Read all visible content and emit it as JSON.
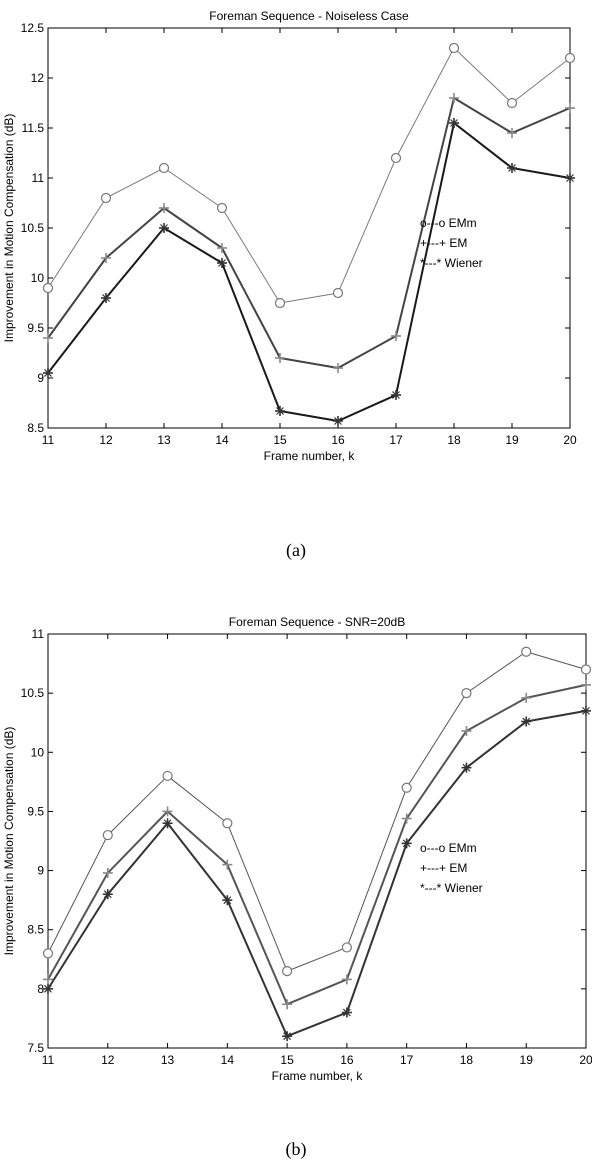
{
  "chart_data": [
    {
      "type": "line",
      "title": "Foreman Sequence - Noiseless Case",
      "xlabel": "Frame number, k",
      "ylabel": "Improvement in Motion Compensation (dB)",
      "x": [
        11,
        12,
        13,
        14,
        15,
        16,
        17,
        18,
        19,
        20
      ],
      "xlim": [
        11,
        20
      ],
      "ylim": [
        8.5,
        12.5
      ],
      "yticks": [
        8.5,
        9,
        9.5,
        10,
        10.5,
        11,
        11.5,
        12,
        12.5
      ],
      "xticks": [
        11,
        12,
        13,
        14,
        15,
        16,
        17,
        18,
        19,
        20
      ],
      "legend_position": "right",
      "legend": [
        "o---o EMm",
        "+---+ EM",
        "*---* Wiener"
      ],
      "series": [
        {
          "name": "EMm",
          "marker": "o",
          "color": "#7a7a7a",
          "values": [
            9.9,
            10.8,
            11.1,
            10.7,
            9.75,
            9.85,
            11.2,
            12.3,
            11.75,
            12.2
          ]
        },
        {
          "name": "EM",
          "marker": "+",
          "color": "#444444",
          "values": [
            9.4,
            10.2,
            10.7,
            10.3,
            9.2,
            9.1,
            9.42,
            11.8,
            11.45,
            11.7
          ]
        },
        {
          "name": "Wiener",
          "marker": "*",
          "color": "#1a1a1a",
          "values": [
            9.05,
            9.8,
            10.5,
            10.15,
            8.67,
            8.57,
            8.83,
            11.55,
            11.1,
            11.0
          ]
        }
      ]
    },
    {
      "type": "line",
      "title": "Foreman Sequence -  SNR=20dB",
      "xlabel": "Frame number, k",
      "ylabel": "Improvement in Motion Compensation (dB)",
      "x": [
        11,
        12,
        13,
        14,
        15,
        16,
        17,
        18,
        19,
        20
      ],
      "xlim": [
        11,
        20
      ],
      "ylim": [
        7.5,
        11
      ],
      "yticks": [
        7.5,
        8,
        8.5,
        9,
        9.5,
        10,
        10.5,
        11
      ],
      "xticks": [
        11,
        12,
        13,
        14,
        15,
        16,
        17,
        18,
        19,
        20
      ],
      "legend_position": "right",
      "legend": [
        "o---o EMm",
        "+---+ EM",
        "*---* Wiener"
      ],
      "series": [
        {
          "name": "EMm",
          "marker": "o",
          "color": "#555555",
          "values": [
            8.3,
            9.3,
            9.8,
            9.4,
            8.15,
            8.35,
            9.7,
            10.5,
            10.85,
            10.7
          ]
        },
        {
          "name": "EM",
          "marker": "+",
          "color": "#555555",
          "values": [
            8.08,
            8.98,
            9.5,
            9.05,
            7.87,
            8.08,
            9.44,
            10.18,
            10.46,
            10.57
          ]
        },
        {
          "name": "Wiener",
          "marker": "*",
          "color": "#333333",
          "values": [
            8.0,
            8.8,
            9.4,
            8.75,
            7.6,
            7.8,
            9.23,
            9.87,
            10.26,
            10.35
          ]
        }
      ]
    }
  ],
  "captions": [
    "(a)",
    "(b)"
  ]
}
